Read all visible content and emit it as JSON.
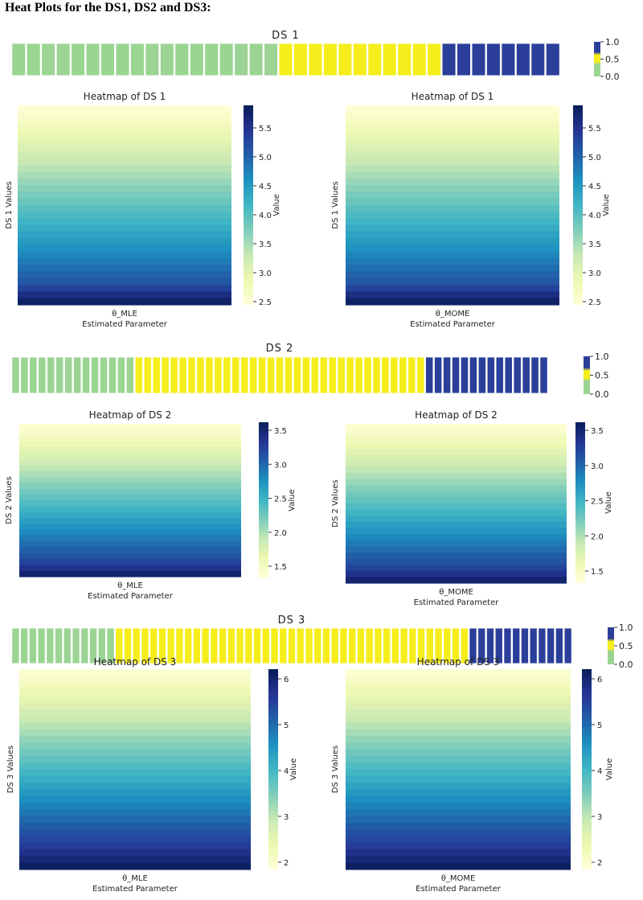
{
  "heading": "Heat Plots for the DS1, DS2 and DS3:",
  "colors": {
    "ylgnbu": [
      "#ffffd9",
      "#edf8b1",
      "#c7e9b4",
      "#7fcdbb",
      "#41b6c4",
      "#1d91c0",
      "#225ea8",
      "#253494",
      "#081d58"
    ],
    "strip_low": "#9cd494",
    "strip_mid": "#f6ee1c",
    "strip_high": "#2b3f9a"
  },
  "chart_data": [
    {
      "type": "heatmap",
      "role": "category-strip",
      "title": "DS 1",
      "cells": [
        0,
        0,
        0,
        0,
        0,
        0,
        0,
        0,
        0,
        0,
        0,
        0,
        0,
        0,
        0,
        0,
        0,
        0,
        0.5,
        0.5,
        0.5,
        0.5,
        0.5,
        0.5,
        0.5,
        0.5,
        0.5,
        0.5,
        0.5,
        1,
        1,
        1,
        1,
        1,
        1,
        1,
        1
      ],
      "colorbar_ticks": [
        "1.0",
        "0.5",
        "0.0"
      ],
      "colorbar_range": [
        0,
        1
      ]
    },
    {
      "type": "heatmap",
      "title": "Heatmap of DS 1",
      "xlabel": "Estimated Parameter",
      "xticks": [
        "θ_MLE"
      ],
      "ylabel": "DS 1 Values",
      "colorbar_label": "Value",
      "colorbar_ticks": [
        "5.5",
        "5.0",
        "4.5",
        "4.0",
        "3.5",
        "3.0",
        "2.5"
      ],
      "value_range": [
        2.45,
        5.9
      ],
      "values": [
        2.5,
        2.6,
        2.7,
        2.8,
        2.9,
        3.0,
        3.1,
        3.2,
        3.3,
        3.4,
        3.5,
        3.6,
        3.7,
        3.8,
        3.9,
        4.0,
        4.1,
        4.2,
        4.3,
        4.4,
        4.5,
        4.6,
        4.7,
        4.8,
        4.9,
        5.0,
        5.1,
        5.3,
        5.6,
        5.8
      ]
    },
    {
      "type": "heatmap",
      "title": "Heatmap of DS 1",
      "xlabel": "Estimated Parameter",
      "xticks": [
        "θ_MOME"
      ],
      "ylabel": "DS 1 Values",
      "colorbar_label": "Value",
      "colorbar_ticks": [
        "5.5",
        "5.0",
        "4.5",
        "4.0",
        "3.5",
        "3.0",
        "2.5"
      ],
      "value_range": [
        2.45,
        5.9
      ],
      "values": [
        2.5,
        2.6,
        2.7,
        2.8,
        2.9,
        3.0,
        3.1,
        3.2,
        3.3,
        3.4,
        3.5,
        3.6,
        3.7,
        3.8,
        3.9,
        4.0,
        4.1,
        4.2,
        4.3,
        4.4,
        4.5,
        4.6,
        4.7,
        4.8,
        4.9,
        5.0,
        5.1,
        5.3,
        5.6,
        5.8
      ]
    },
    {
      "type": "heatmap",
      "role": "category-strip",
      "title": "DS 2",
      "cells": [
        0,
        0,
        0,
        0,
        0,
        0,
        0,
        0,
        0,
        0,
        0,
        0,
        0,
        0,
        0.5,
        0.5,
        0.5,
        0.5,
        0.5,
        0.5,
        0.5,
        0.5,
        0.5,
        0.5,
        0.5,
        0.5,
        0.5,
        0.5,
        0.5,
        0.5,
        0.5,
        0.5,
        0.5,
        0.5,
        0.5,
        0.5,
        0.5,
        0.5,
        0.5,
        0.5,
        0.5,
        0.5,
        0.5,
        0.5,
        0.5,
        0.5,
        0.5,
        1,
        1,
        1,
        1,
        1,
        1,
        1,
        1,
        1,
        1,
        1,
        1,
        1,
        1
      ],
      "colorbar_ticks": [
        "1.0",
        "0.5",
        "0.0"
      ],
      "colorbar_range": [
        0,
        1
      ]
    },
    {
      "type": "heatmap",
      "title": "Heatmap of DS 2",
      "xlabel": "Estimated Parameter",
      "xticks": [
        "θ_MLE"
      ],
      "ylabel": "DS 2 Values",
      "colorbar_label": "Value",
      "colorbar_ticks": [
        "3.5",
        "3.0",
        "2.5",
        "2.0",
        "1.5"
      ],
      "value_range": [
        1.3,
        3.6
      ],
      "values": [
        1.35,
        1.42,
        1.5,
        1.58,
        1.66,
        1.74,
        1.82,
        1.9,
        1.98,
        2.06,
        2.14,
        2.22,
        2.3,
        2.38,
        2.46,
        2.54,
        2.62,
        2.7,
        2.78,
        2.86,
        2.94,
        3.02,
        3.1,
        3.2,
        3.35,
        3.5
      ]
    },
    {
      "type": "heatmap",
      "title": "Heatmap of DS 2",
      "xlabel": "Estimated Parameter",
      "xticks": [
        "θ_MOME"
      ],
      "ylabel": "DS 2 Values",
      "colorbar_label": "Value",
      "colorbar_ticks": [
        "3.5",
        "3.0",
        "2.5",
        "2.0",
        "1.5"
      ],
      "value_range": [
        1.3,
        3.6
      ],
      "values": [
        1.35,
        1.42,
        1.5,
        1.58,
        1.66,
        1.74,
        1.82,
        1.9,
        1.98,
        2.06,
        2.14,
        2.22,
        2.3,
        2.38,
        2.46,
        2.54,
        2.62,
        2.7,
        2.78,
        2.86,
        2.94,
        3.02,
        3.1,
        3.2,
        3.35,
        3.5
      ]
    },
    {
      "type": "heatmap",
      "role": "category-strip",
      "title": "DS 3",
      "cells": [
        0,
        0,
        0,
        0,
        0,
        0,
        0,
        0,
        0,
        0,
        0,
        0,
        0.5,
        0.5,
        0.5,
        0.5,
        0.5,
        0.5,
        0.5,
        0.5,
        0.5,
        0.5,
        0.5,
        0.5,
        0.5,
        0.5,
        0.5,
        0.5,
        0.5,
        0.5,
        0.5,
        0.5,
        0.5,
        0.5,
        0.5,
        0.5,
        0.5,
        0.5,
        0.5,
        0.5,
        0.5,
        0.5,
        0.5,
        0.5,
        0.5,
        0.5,
        0.5,
        0.5,
        0.5,
        0.5,
        0.5,
        0.5,
        0.5,
        1,
        1,
        1,
        1,
        1,
        1,
        1,
        1,
        1,
        1,
        1,
        1
      ],
      "colorbar_ticks": [
        "1.0",
        "0.5",
        "0.0"
      ],
      "colorbar_range": [
        0,
        1
      ]
    },
    {
      "type": "heatmap",
      "title": "Heatmap of DS 3",
      "xlabel": "Estimated Parameter",
      "xticks": [
        "θ_MLE"
      ],
      "ylabel": "DS 3 Values",
      "colorbar_label": "Value",
      "colorbar_ticks": [
        "6",
        "5",
        "4",
        "3",
        "2"
      ],
      "value_range": [
        1.6,
        6.3
      ],
      "values": [
        1.7,
        1.85,
        2.0,
        2.15,
        2.3,
        2.45,
        2.6,
        2.75,
        2.9,
        3.05,
        3.2,
        3.35,
        3.5,
        3.65,
        3.8,
        3.95,
        4.1,
        4.25,
        4.4,
        4.55,
        4.7,
        4.85,
        5.0,
        5.15,
        5.3,
        5.45,
        5.6,
        5.8,
        6.0,
        6.2
      ]
    },
    {
      "type": "heatmap",
      "title": "Heatmap of DS 3",
      "xlabel": "Estimated Parameter",
      "xticks": [
        "θ_MOME"
      ],
      "ylabel": "DS 3 Values",
      "colorbar_label": "Value",
      "colorbar_ticks": [
        "6",
        "5",
        "4",
        "3",
        "2"
      ],
      "value_range": [
        1.6,
        6.3
      ],
      "values": [
        1.7,
        1.85,
        2.0,
        2.15,
        2.3,
        2.45,
        2.6,
        2.75,
        2.9,
        3.05,
        3.2,
        3.35,
        3.5,
        3.65,
        3.8,
        3.95,
        4.1,
        4.25,
        4.4,
        4.55,
        4.7,
        4.85,
        5.0,
        5.15,
        5.3,
        5.45,
        5.6,
        5.8,
        6.0,
        6.2
      ]
    }
  ]
}
